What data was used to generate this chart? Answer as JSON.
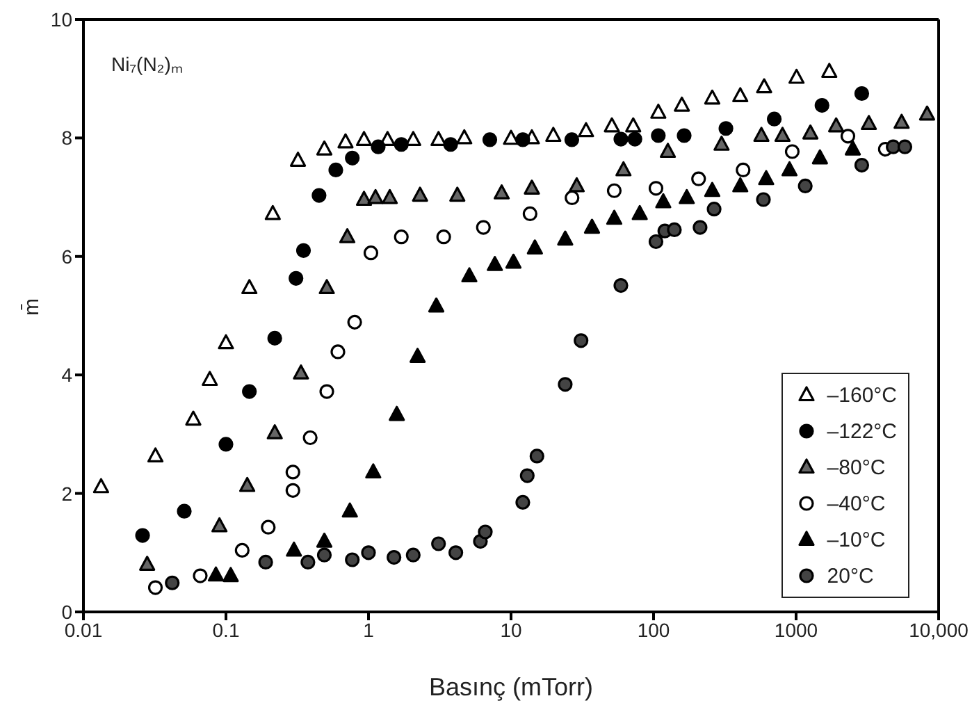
{
  "chart_data": {
    "type": "scatter",
    "annotations": [
      "Ni₇(N₂)ₘ"
    ],
    "xlabel": "Basınç (mTorr)",
    "ylabel": "m̄",
    "log": "x",
    "xlim": [
      0.01,
      10000
    ],
    "xticks": [
      0.01,
      0.1,
      1,
      10,
      100,
      1000,
      {
        "value": 10000,
        "label": "10,000"
      }
    ],
    "ylim": [
      0,
      10
    ],
    "yticks": [
      0,
      2,
      4,
      6,
      8,
      10
    ],
    "grid": false,
    "legend": "bottom right",
    "series": [
      {
        "name": "–160°C",
        "marker": "triangle",
        "color": "#ffffff",
        "x": [
          0.0133,
          0.032,
          0.059,
          0.077,
          0.1,
          0.146,
          0.213,
          0.32,
          0.49,
          0.69,
          0.93,
          1.36,
          2.06,
          3.1,
          4.7,
          10,
          14,
          19.8,
          33.6,
          51,
          72,
          108,
          158,
          258,
          406,
          597,
          1007,
          1710
        ],
        "values": [
          2.11,
          2.63,
          3.25,
          3.92,
          4.54,
          5.47,
          6.72,
          7.62,
          7.81,
          7.93,
          7.97,
          7.97,
          7.97,
          7.97,
          8.0,
          7.99,
          8.0,
          8.04,
          8.12,
          8.2,
          8.2,
          8.43,
          8.55,
          8.67,
          8.71,
          8.86,
          9.02,
          9.12
        ]
      },
      {
        "name": "–122°C",
        "marker": "circle",
        "color": "#000000",
        "x": [
          0.026,
          0.051,
          0.1,
          0.146,
          0.22,
          0.31,
          0.35,
          0.45,
          0.59,
          0.77,
          1.17,
          1.7,
          3.77,
          7.1,
          12.1,
          26.7,
          59,
          74,
          108,
          164,
          322,
          703,
          1520,
          2890
        ],
        "values": [
          1.29,
          1.7,
          2.83,
          3.72,
          4.62,
          5.63,
          6.1,
          7.03,
          7.46,
          7.66,
          7.85,
          7.89,
          7.89,
          7.97,
          7.97,
          7.97,
          7.98,
          7.98,
          8.04,
          8.04,
          8.16,
          8.32,
          8.55,
          8.75
        ]
      },
      {
        "name": "–80°C",
        "marker": "triangle",
        "color": "#666666",
        "x": [
          0.028,
          0.09,
          0.141,
          0.22,
          0.336,
          0.51,
          0.71,
          0.93,
          1.12,
          1.41,
          2.3,
          4.2,
          8.6,
          14,
          28.9,
          61.5,
          126,
          300,
          571,
          803,
          1260,
          1910,
          3240,
          5500,
          8300
        ],
        "values": [
          0.8,
          1.45,
          2.13,
          3.02,
          4.03,
          5.47,
          6.33,
          6.96,
          6.99,
          6.99,
          7.03,
          7.03,
          7.07,
          7.15,
          7.19,
          7.46,
          7.77,
          7.89,
          8.04,
          8.04,
          8.08,
          8.2,
          8.24,
          8.26,
          8.4
        ]
      },
      {
        "name": "–40°C",
        "marker": "circle",
        "color": "#ffffff",
        "x": [
          0.032,
          0.066,
          0.13,
          0.198,
          0.295,
          0.295,
          0.39,
          0.51,
          0.61,
          0.8,
          1.04,
          1.7,
          3.37,
          6.4,
          13.6,
          26.8,
          53,
          104,
          207,
          425,
          940,
          2310,
          4230
        ],
        "values": [
          0.41,
          0.61,
          1.04,
          1.43,
          2.05,
          2.36,
          2.94,
          3.72,
          4.39,
          4.89,
          6.06,
          6.33,
          6.33,
          6.49,
          6.72,
          6.99,
          7.11,
          7.15,
          7.31,
          7.46,
          7.77,
          8.03,
          7.81
        ]
      },
      {
        "name": "–10°C",
        "marker": "triangle",
        "color": "#000000",
        "x": [
          0.085,
          0.108,
          0.3,
          0.49,
          0.74,
          1.08,
          1.58,
          2.21,
          2.99,
          5.1,
          7.7,
          10.4,
          14.7,
          24,
          37,
          53,
          80,
          117,
          171,
          258,
          406,
          617,
          899,
          1470,
          2500
        ],
        "values": [
          0.62,
          0.61,
          1.04,
          1.19,
          1.7,
          2.36,
          3.33,
          4.31,
          5.16,
          5.67,
          5.86,
          5.9,
          6.14,
          6.29,
          6.49,
          6.64,
          6.72,
          6.92,
          6.99,
          7.11,
          7.19,
          7.31,
          7.46,
          7.66,
          7.81
        ]
      },
      {
        "name": "20°C",
        "marker": "circle",
        "color": "#444444",
        "x": [
          0.042,
          0.19,
          0.376,
          0.49,
          0.77,
          1.0,
          1.51,
          2.06,
          3.1,
          4.1,
          6.1,
          6.6,
          12.1,
          13,
          15.2,
          24,
          31,
          59,
          104,
          120,
          140,
          212,
          266,
          590,
          1160,
          2890,
          4800,
          5800
        ],
        "values": [
          0.49,
          0.84,
          0.84,
          0.96,
          0.88,
          1.0,
          0.92,
          0.96,
          1.15,
          1.0,
          1.19,
          1.35,
          1.85,
          2.3,
          2.63,
          3.84,
          4.58,
          5.51,
          6.25,
          6.43,
          6.45,
          6.49,
          6.8,
          6.96,
          7.19,
          7.54,
          7.85,
          7.85
        ]
      }
    ]
  }
}
